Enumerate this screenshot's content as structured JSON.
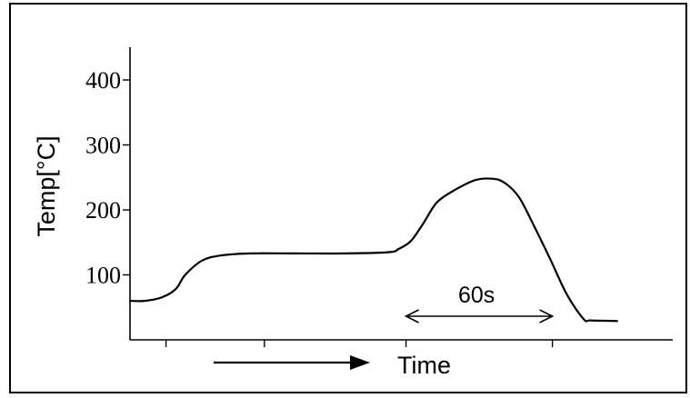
{
  "chart_data": {
    "type": "line",
    "title": "",
    "ylabel": "Temp[°C]",
    "xlabel": "Time",
    "ylim": [
      0,
      450
    ],
    "yticks": [
      100,
      200,
      300,
      400
    ],
    "ytick_labels": [
      "100",
      "200",
      "300",
      "400"
    ],
    "xlim": [
      0,
      225
    ],
    "xticks": [
      15,
      56,
      115,
      176
    ],
    "x_unit": "s",
    "grid": false,
    "series": [
      {
        "values_note_free": true,
        "x": [
          0,
          6,
          13,
          19,
          23,
          30,
          38,
          50,
          70,
          90,
          108,
          112,
          117,
          122,
          128,
          136,
          144,
          151,
          156,
          162,
          168,
          175,
          182,
          189,
          192,
          203
        ],
        "y": [
          60,
          60,
          65,
          78,
          100,
          122,
          130,
          133,
          133,
          133,
          135,
          140,
          152,
          178,
          212,
          232,
          246,
          248,
          242,
          220,
          178,
          125,
          70,
          32,
          30,
          29
        ]
      }
    ],
    "annotations": [
      {
        "text": "60s",
        "x_start": 115,
        "x_end": 176
      }
    ]
  }
}
